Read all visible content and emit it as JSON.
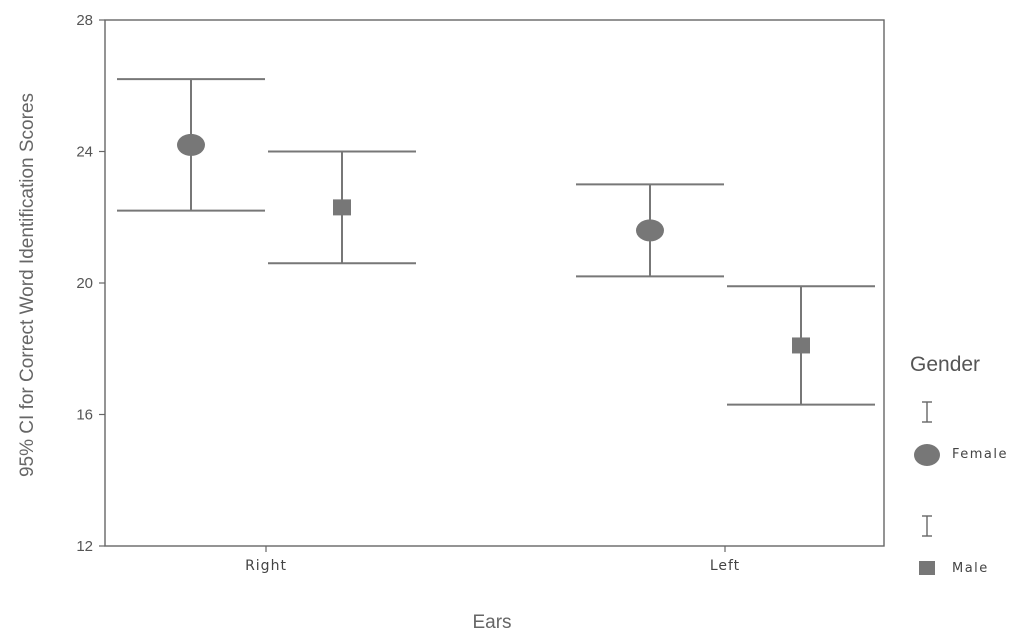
{
  "chart_data": {
    "type": "scatter",
    "subtype": "error-bar",
    "xlabel": "Ears",
    "ylabel": "95% CI for Correct Word Identification Scores",
    "ylim": [
      12,
      28
    ],
    "yticks": [
      12,
      16,
      20,
      24,
      28
    ],
    "categories": [
      "Right",
      "Left"
    ],
    "grid": false,
    "legend": {
      "title": "Gender",
      "placement": "right"
    },
    "series": [
      {
        "name": "Female",
        "marker": "circle",
        "color": "#777777",
        "points": [
          {
            "category": "Right",
            "mean": 24.2,
            "lower": 22.2,
            "upper": 26.2
          },
          {
            "category": "Left",
            "mean": 21.6,
            "lower": 20.2,
            "upper": 23.0
          }
        ]
      },
      {
        "name": "Male",
        "marker": "square",
        "color": "#777777",
        "points": [
          {
            "category": "Right",
            "mean": 22.3,
            "lower": 20.6,
            "upper": 24.0
          },
          {
            "category": "Left",
            "mean": 18.1,
            "lower": 16.3,
            "upper": 19.9
          }
        ]
      }
    ]
  }
}
